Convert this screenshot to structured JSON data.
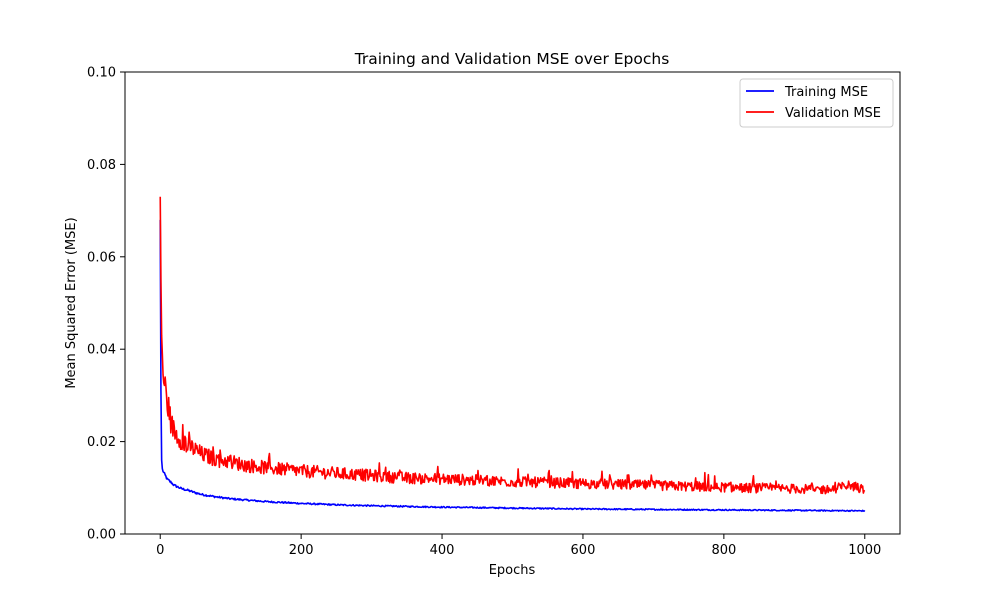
{
  "chart_data": {
    "type": "line",
    "title": "Training and Validation MSE over Epochs",
    "xlabel": "Epochs",
    "ylabel": "Mean Squared Error (MSE)",
    "xlim": [
      -50,
      1050
    ],
    "ylim": [
      0,
      0.1
    ],
    "xticks": [
      0,
      200,
      400,
      600,
      800,
      1000
    ],
    "yticks": [
      0.0,
      0.02,
      0.04,
      0.06,
      0.08,
      0.1
    ],
    "ytick_labels": [
      "0.00",
      "0.02",
      "0.04",
      "0.06",
      "0.08",
      "0.10"
    ],
    "grid": false,
    "legend_position": "upper-right",
    "series": [
      {
        "name": "Training MSE",
        "color": "#0000ff",
        "x": [
          0,
          1,
          2,
          3,
          5,
          8,
          10,
          15,
          20,
          30,
          40,
          50,
          60,
          80,
          100,
          150,
          200,
          250,
          300,
          400,
          500,
          600,
          700,
          800,
          900,
          1000
        ],
        "y": [
          0.068,
          0.031,
          0.016,
          0.014,
          0.0132,
          0.0124,
          0.0118,
          0.0112,
          0.0105,
          0.0098,
          0.0094,
          0.0089,
          0.0085,
          0.008,
          0.0076,
          0.007,
          0.0066,
          0.0063,
          0.0061,
          0.0058,
          0.0056,
          0.0054,
          0.0053,
          0.0052,
          0.0051,
          0.005
        ]
      },
      {
        "name": "Validation MSE",
        "color": "#ff0000",
        "x": [
          0,
          1,
          2,
          3,
          4,
          5,
          6,
          8,
          10,
          12,
          15,
          20,
          25,
          30,
          40,
          50,
          60,
          70,
          80,
          100,
          120,
          150,
          200,
          250,
          300,
          350,
          400,
          450,
          500,
          550,
          600,
          650,
          700,
          750,
          800,
          850,
          900,
          950,
          980,
          1000
        ],
        "y": [
          0.073,
          0.055,
          0.043,
          0.038,
          0.035,
          0.032,
          0.033,
          0.03,
          0.028,
          0.027,
          0.024,
          0.022,
          0.021,
          0.02,
          0.019,
          0.018,
          0.017,
          0.0165,
          0.016,
          0.0155,
          0.0148,
          0.0142,
          0.0135,
          0.013,
          0.0125,
          0.012,
          0.0118,
          0.0115,
          0.0112,
          0.011,
          0.0108,
          0.0106,
          0.0104,
          0.0102,
          0.01,
          0.0098,
          0.0097,
          0.0095,
          0.0105,
          0.0094
        ]
      }
    ]
  }
}
